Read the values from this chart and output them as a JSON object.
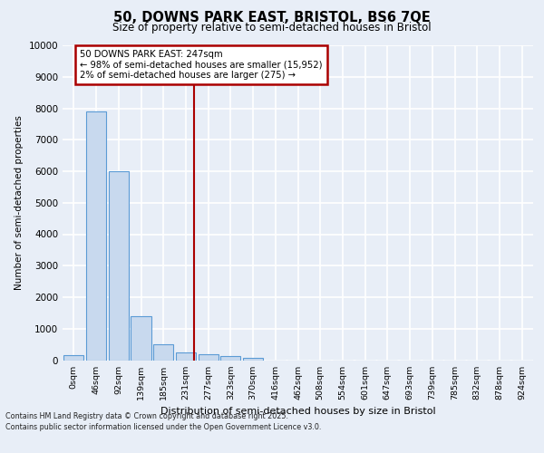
{
  "title_line1": "50, DOWNS PARK EAST, BRISTOL, BS6 7QE",
  "title_line2": "Size of property relative to semi-detached houses in Bristol",
  "xlabel": "Distribution of semi-detached houses by size in Bristol",
  "ylabel": "Number of semi-detached properties",
  "bar_labels": [
    "0sqm",
    "46sqm",
    "92sqm",
    "139sqm",
    "185sqm",
    "231sqm",
    "277sqm",
    "323sqm",
    "370sqm",
    "416sqm",
    "462sqm",
    "508sqm",
    "554sqm",
    "601sqm",
    "647sqm",
    "693sqm",
    "739sqm",
    "785sqm",
    "832sqm",
    "878sqm",
    "924sqm"
  ],
  "bar_values": [
    150,
    7900,
    6000,
    1400,
    500,
    250,
    175,
    130,
    60,
    0,
    0,
    0,
    0,
    0,
    0,
    0,
    0,
    0,
    0,
    0,
    0
  ],
  "bar_color": "#c8d9ee",
  "bar_edge_color": "#5b9bd5",
  "annotation_title": "50 DOWNS PARK EAST: 247sqm",
  "annotation_line2": "← 98% of semi-detached houses are smaller (15,952)",
  "annotation_line3": "2% of semi-detached houses are larger (275) →",
  "vline_x_idx": 5.35,
  "ylim": [
    0,
    10000
  ],
  "yticks": [
    0,
    1000,
    2000,
    3000,
    4000,
    5000,
    6000,
    7000,
    8000,
    9000,
    10000
  ],
  "footer_line1": "Contains HM Land Registry data © Crown copyright and database right 2025.",
  "footer_line2": "Contains public sector information licensed under the Open Government Licence v3.0.",
  "bg_color": "#e8eef7",
  "plot_bg_color": "#e8eef7",
  "grid_color": "#ffffff",
  "vline_color": "#aa0000",
  "ann_box_color": "#aa0000"
}
